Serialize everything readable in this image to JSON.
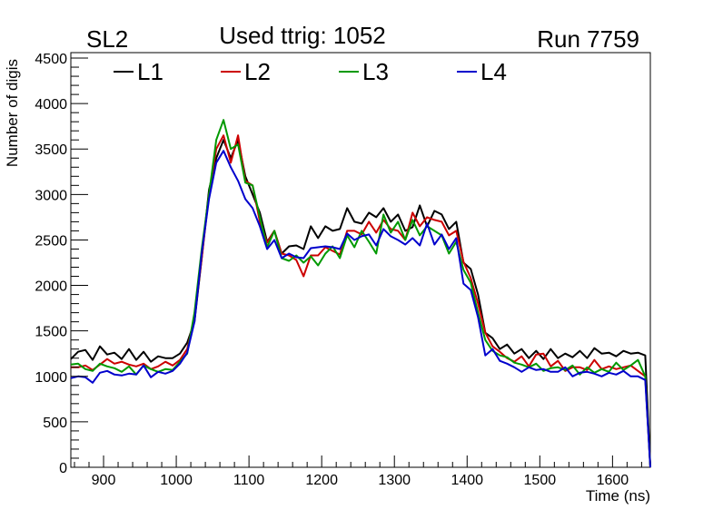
{
  "header": {
    "left_label": "SL2",
    "title": "Used ttrig: 1052",
    "right_label": "Run 7759"
  },
  "chart_data": {
    "type": "line",
    "xlabel": "Time (ns)",
    "ylabel": "Number of digis",
    "xlim": [
      855,
      1652
    ],
    "ylim": [
      0,
      4560
    ],
    "x_ticks": [
      900,
      1000,
      1100,
      1200,
      1300,
      1400,
      1500,
      1600
    ],
    "y_ticks": [
      0,
      500,
      1000,
      1500,
      2000,
      2500,
      3000,
      3500,
      4000,
      4500
    ],
    "legend_position": "top",
    "x": [
      855,
      865,
      875,
      885,
      895,
      905,
      915,
      925,
      935,
      945,
      955,
      965,
      975,
      985,
      995,
      1005,
      1015,
      1025,
      1035,
      1045,
      1055,
      1065,
      1075,
      1085,
      1095,
      1105,
      1115,
      1125,
      1135,
      1145,
      1155,
      1165,
      1175,
      1185,
      1195,
      1205,
      1215,
      1225,
      1235,
      1245,
      1255,
      1265,
      1275,
      1285,
      1295,
      1305,
      1315,
      1325,
      1335,
      1345,
      1355,
      1365,
      1375,
      1385,
      1395,
      1405,
      1415,
      1425,
      1435,
      1445,
      1455,
      1465,
      1475,
      1485,
      1495,
      1505,
      1515,
      1525,
      1535,
      1545,
      1555,
      1565,
      1575,
      1585,
      1595,
      1605,
      1615,
      1625,
      1635,
      1645,
      1652
    ],
    "series": [
      {
        "name": "L1",
        "color": "#000000",
        "values": [
          1190,
          1270,
          1290,
          1180,
          1330,
          1240,
          1260,
          1190,
          1300,
          1180,
          1270,
          1160,
          1220,
          1200,
          1200,
          1250,
          1370,
          1600,
          2300,
          3050,
          3400,
          3600,
          3400,
          3600,
          3200,
          3000,
          2800,
          2480,
          2600,
          2350,
          2430,
          2440,
          2400,
          2650,
          2520,
          2650,
          2600,
          2620,
          2850,
          2700,
          2680,
          2800,
          2750,
          2850,
          2700,
          2780,
          2600,
          2640,
          2880,
          2650,
          2820,
          2780,
          2620,
          2700,
          2250,
          2180,
          1900,
          1480,
          1420,
          1300,
          1350,
          1250,
          1300,
          1200,
          1280,
          1190,
          1300,
          1200,
          1250,
          1210,
          1280,
          1200,
          1310,
          1250,
          1260,
          1220,
          1280,
          1250,
          1260,
          1230,
          0
        ]
      },
      {
        "name": "L2",
        "color": "#cc0000",
        "values": [
          1100,
          1100,
          1120,
          1070,
          1130,
          1190,
          1140,
          1160,
          1130,
          1110,
          1140,
          1080,
          1110,
          1160,
          1120,
          1180,
          1300,
          1650,
          2300,
          3000,
          3500,
          3650,
          3350,
          3650,
          3150,
          3100,
          2700,
          2470,
          2600,
          2350,
          2330,
          2280,
          2100,
          2330,
          2330,
          2420,
          2380,
          2340,
          2600,
          2600,
          2560,
          2700,
          2580,
          2720,
          2620,
          2600,
          2500,
          2800,
          2650,
          2750,
          2720,
          2700,
          2550,
          2600,
          2260,
          2080,
          1800,
          1480,
          1330,
          1270,
          1200,
          1160,
          1220,
          1110,
          1240,
          1250,
          1110,
          1170,
          1060,
          1100,
          1100,
          1070,
          1180,
          1080,
          1110,
          1080,
          1100,
          1120,
          1060,
          1000,
          0
        ]
      },
      {
        "name": "L3",
        "color": "#009900",
        "values": [
          1130,
          1140,
          1080,
          1060,
          1140,
          1110,
          1090,
          1050,
          1110,
          1020,
          1120,
          1080,
          1050,
          1080,
          1070,
          1160,
          1250,
          1700,
          2400,
          3000,
          3600,
          3820,
          3500,
          3550,
          3130,
          3100,
          2750,
          2420,
          2600,
          2300,
          2270,
          2330,
          2250,
          2320,
          2220,
          2350,
          2430,
          2300,
          2550,
          2420,
          2600,
          2480,
          2350,
          2780,
          2580,
          2700,
          2500,
          2720,
          2550,
          2650,
          2600,
          2550,
          2350,
          2480,
          2170,
          2030,
          1700,
          1400,
          1280,
          1230,
          1210,
          1150,
          1130,
          1100,
          1140,
          1060,
          1090,
          1100,
          1070,
          1120,
          1020,
          1100,
          1040,
          1080,
          1050,
          1150,
          1070,
          1120,
          1180,
          1000,
          0
        ]
      },
      {
        "name": "L4",
        "color": "#0000cc",
        "values": [
          980,
          1000,
          990,
          930,
          1040,
          1060,
          1020,
          1010,
          1030,
          1020,
          1120,
          990,
          1050,
          1030,
          1060,
          1140,
          1260,
          1600,
          2350,
          2950,
          3350,
          3480,
          3300,
          3150,
          2950,
          2850,
          2650,
          2400,
          2500,
          2300,
          2350,
          2310,
          2300,
          2410,
          2420,
          2430,
          2420,
          2400,
          2570,
          2500,
          2540,
          2560,
          2440,
          2620,
          2540,
          2500,
          2450,
          2520,
          2440,
          2680,
          2450,
          2560,
          2400,
          2520,
          2020,
          1950,
          1650,
          1230,
          1300,
          1170,
          1140,
          1100,
          1050,
          1100,
          1070,
          1080,
          1050,
          1050,
          1100,
          1000,
          1040,
          1050,
          1030,
          1000,
          1040,
          1020,
          1060,
          1000,
          1000,
          960,
          0
        ]
      }
    ]
  }
}
